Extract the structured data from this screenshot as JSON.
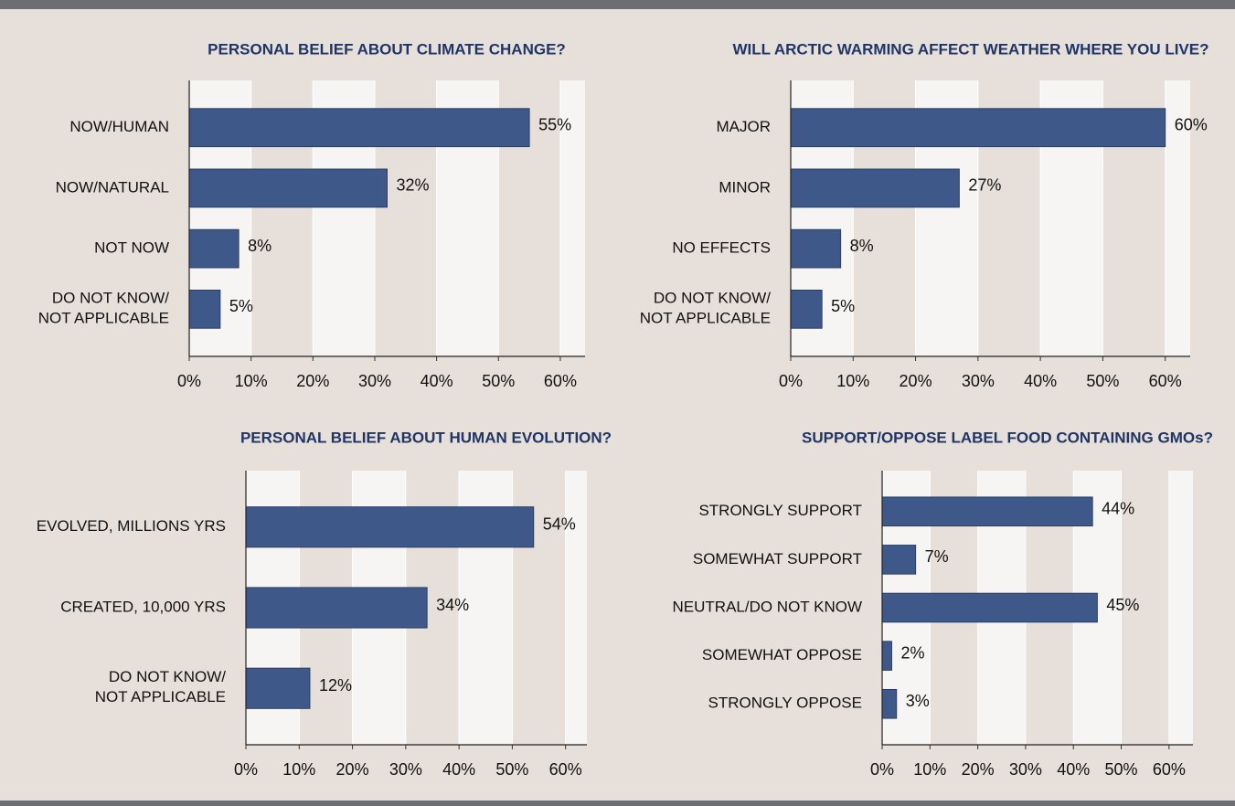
{
  "chart_data": [
    {
      "type": "bar",
      "title": "PERSONAL BELIEF ABOUT CLIMATE CHANGE?",
      "categories": [
        "NOW/HUMAN",
        "NOW/NATURAL",
        "NOT NOW",
        "DO NOT KNOW/\nNOT APPLICABLE"
      ],
      "values": [
        55,
        32,
        8,
        5
      ],
      "value_labels": [
        "55%",
        "32%",
        "8%",
        "5%"
      ],
      "color": "#3e5989",
      "xlim": [
        0,
        64
      ],
      "xticks": [
        {
          "value": 0,
          "label": "0%"
        },
        {
          "value": 10,
          "label": "10%"
        },
        {
          "value": 20,
          "label": "20%"
        },
        {
          "value": 30,
          "label": "30%"
        },
        {
          "value": 40,
          "label": "40%"
        },
        {
          "value": 50,
          "label": "50%"
        },
        {
          "value": 60,
          "label": "60%"
        }
      ]
    },
    {
      "type": "bar",
      "title": "WILL ARCTIC WARMING AFFECT WEATHER WHERE YOU LIVE?",
      "categories": [
        "MAJOR",
        "MINOR",
        "NO EFFECTS",
        "DO NOT KNOW/\nNOT APPLICABLE"
      ],
      "values": [
        60,
        27,
        8,
        5
      ],
      "value_labels": [
        "60%",
        "27%",
        "8%",
        "5%"
      ],
      "color": "#3e5989",
      "xlim": [
        0,
        64
      ],
      "xticks": [
        {
          "value": 0,
          "label": "0%"
        },
        {
          "value": 10,
          "label": "10%"
        },
        {
          "value": 20,
          "label": "20%"
        },
        {
          "value": 30,
          "label": "30%"
        },
        {
          "value": 40,
          "label": "40%"
        },
        {
          "value": 50,
          "label": "50%"
        },
        {
          "value": 60,
          "label": "60%"
        }
      ]
    },
    {
      "type": "bar",
      "title": "PERSONAL BELIEF ABOUT HUMAN EVOLUTION?",
      "categories": [
        "EVOLVED, MILLIONS YRS",
        "CREATED, 10,000 YRS",
        "DO NOT KNOW/\nNOT APPLICABLE"
      ],
      "values": [
        54,
        34,
        12
      ],
      "value_labels": [
        "54%",
        "34%",
        "12%"
      ],
      "color": "#3e5989",
      "xlim": [
        0,
        64
      ],
      "xticks": [
        {
          "value": 0,
          "label": "0%"
        },
        {
          "value": 10,
          "label": "10%"
        },
        {
          "value": 20,
          "label": "20%"
        },
        {
          "value": 30,
          "label": "30%"
        },
        {
          "value": 40,
          "label": "40%"
        },
        {
          "value": 50,
          "label": "50%"
        },
        {
          "value": 60,
          "label": "60%"
        }
      ]
    },
    {
      "type": "bar",
      "title": "SUPPORT/OPPOSE LABEL FOOD CONTAINING GMOs?",
      "categories": [
        "STRONGLY SUPPORT",
        "SOMEWHAT SUPPORT",
        "NEUTRAL/DO NOT KNOW",
        "SOMEWHAT OPPOSE",
        "STRONGLY OPPOSE"
      ],
      "values": [
        44,
        7,
        45,
        2,
        3
      ],
      "value_labels": [
        "44%",
        "7%",
        "45%",
        "2%",
        "3%"
      ],
      "color": "#3e5989",
      "xlim": [
        0,
        65
      ],
      "xticks": [
        {
          "value": 0,
          "label": "0%"
        },
        {
          "value": 10,
          "label": "10%"
        },
        {
          "value": 20,
          "label": "20%"
        },
        {
          "value": 30,
          "label": "30%"
        },
        {
          "value": 40,
          "label": "40%"
        },
        {
          "value": 50,
          "label": "50%"
        },
        {
          "value": 60,
          "label": "60%"
        }
      ]
    }
  ]
}
